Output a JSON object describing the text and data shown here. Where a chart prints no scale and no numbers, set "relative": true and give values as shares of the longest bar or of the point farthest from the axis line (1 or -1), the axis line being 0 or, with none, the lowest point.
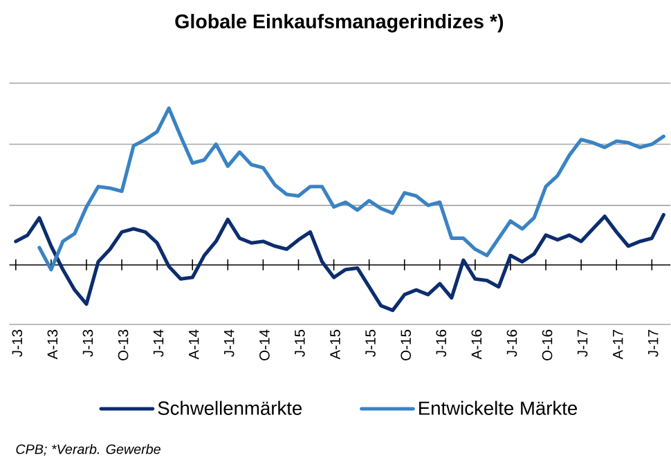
{
  "chart_data": {
    "type": "line",
    "title": "Globale Einkaufsmanagerindizes *)",
    "x": [
      "2013-01",
      "2013-02",
      "2013-03",
      "2013-04",
      "2013-05",
      "2013-06",
      "2013-07",
      "2013-08",
      "2013-09",
      "2013-10",
      "2013-11",
      "2013-12",
      "2014-01",
      "2014-02",
      "2014-03",
      "2014-04",
      "2014-05",
      "2014-06",
      "2014-07",
      "2014-08",
      "2014-09",
      "2014-10",
      "2014-11",
      "2014-12",
      "2015-01",
      "2015-02",
      "2015-03",
      "2015-04",
      "2015-05",
      "2015-06",
      "2015-07",
      "2015-08",
      "2015-09",
      "2015-10",
      "2015-11",
      "2015-12",
      "2016-01",
      "2016-02",
      "2016-03",
      "2016-04",
      "2016-05",
      "2016-06",
      "2016-07",
      "2016-08",
      "2016-09",
      "2016-10",
      "2016-11",
      "2016-12",
      "2017-01",
      "2017-02",
      "2017-03",
      "2017-04",
      "2017-05",
      "2017-06",
      "2017-07",
      "2017-08"
    ],
    "series": [
      {
        "name": "Schwellenmärkte",
        "color": "#0c2d6e",
        "values": [
          0.15,
          0.19,
          0.3,
          0.12,
          -0.03,
          -0.16,
          -0.25,
          0.02,
          0.1,
          0.21,
          0.23,
          0.21,
          0.14,
          -0.01,
          -0.09,
          -0.08,
          0.06,
          0.15,
          0.29,
          0.17,
          0.14,
          0.15,
          0.12,
          0.1,
          0.16,
          0.21,
          0.02,
          -0.08,
          -0.03,
          -0.02,
          -0.14,
          -0.26,
          -0.29,
          -0.19,
          -0.16,
          -0.19,
          -0.12,
          -0.21,
          0.03,
          -0.09,
          -0.1,
          -0.14,
          0.06,
          0.02,
          0.07,
          0.19,
          0.16,
          0.19,
          0.15,
          0.23,
          0.31,
          0.21,
          0.12,
          0.15,
          0.17,
          0.32
        ]
      },
      {
        "name": "Entwickelte Märkte",
        "color": "#3a83c3",
        "values": [
          null,
          null,
          0.11,
          -0.03,
          0.15,
          0.2,
          0.37,
          0.5,
          0.49,
          0.47,
          0.76,
          0.8,
          0.85,
          1.0,
          0.82,
          0.65,
          0.67,
          0.77,
          0.63,
          0.72,
          0.64,
          0.62,
          0.51,
          0.45,
          0.44,
          0.5,
          0.5,
          0.37,
          0.4,
          0.35,
          0.41,
          0.36,
          0.33,
          0.46,
          0.44,
          0.38,
          0.4,
          0.17,
          0.17,
          0.1,
          0.06,
          0.17,
          0.28,
          0.23,
          0.3,
          0.5,
          0.57,
          0.7,
          0.8,
          0.78,
          0.75,
          0.79,
          0.78,
          0.75,
          0.77,
          0.82
        ]
      }
    ],
    "relative": true,
    "xlim": [
      "2012-12-15",
      "2017-08-19"
    ],
    "xticks": [
      {
        "value": "2013-01",
        "label": "J-13"
      },
      {
        "value": "2013-04",
        "label": "A-13"
      },
      {
        "value": "2013-07",
        "label": "J-13"
      },
      {
        "value": "2013-10",
        "label": "O-13"
      },
      {
        "value": "2014-01",
        "label": "J-14"
      },
      {
        "value": "2014-04",
        "label": "A-14"
      },
      {
        "value": "2014-07",
        "label": "J-14"
      },
      {
        "value": "2014-10",
        "label": "O-14"
      },
      {
        "value": "2015-01",
        "label": "J-15"
      },
      {
        "value": "2015-04",
        "label": "A-15"
      },
      {
        "value": "2015-07",
        "label": "J-15"
      },
      {
        "value": "2015-10",
        "label": "O-15"
      },
      {
        "value": "2016-01",
        "label": "J-16"
      },
      {
        "value": "2016-04",
        "label": "A-16"
      },
      {
        "value": "2016-07",
        "label": "J-16"
      },
      {
        "value": "2016-10",
        "label": "O-16"
      },
      {
        "value": "2017-01",
        "label": "J-17"
      },
      {
        "value": "2017-04",
        "label": "A-17"
      },
      {
        "value": "2017-07",
        "label": "J-17"
      }
    ],
    "ref_lines": [
      {
        "axis": "y",
        "value": -0.38,
        "color": "#a6a6a6"
      },
      {
        "axis": "y",
        "value": 0.38,
        "color": "#a6a6a6"
      },
      {
        "axis": "y",
        "value": 0.77,
        "color": "#a6a6a6"
      },
      {
        "axis": "y",
        "value": 1.16,
        "color": "#a6a6a6"
      }
    ],
    "tick_labels": "x",
    "legend": "bottom",
    "line_style": "solid",
    "annotations": [
      "CPB; *Verarb. Gewerbe"
    ]
  }
}
